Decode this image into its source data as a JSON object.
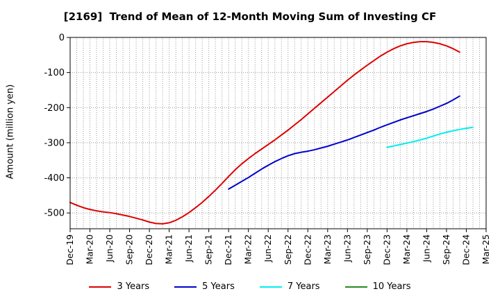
{
  "chart_data": {
    "type": "line",
    "title": "[2169]  Trend of Mean of 12-Month Moving Sum of Investing CF",
    "xlabel": "",
    "ylabel": "Amount (million yen)",
    "ylim": [
      -545,
      0
    ],
    "yticks": [
      0,
      -100,
      -200,
      -300,
      -400,
      -500
    ],
    "ytick_labels": [
      "0",
      "-100",
      "-200",
      "-300",
      "-400",
      "-500"
    ],
    "x_start": "Dec-19",
    "x_months": 63,
    "xtick_labels": [
      "Dec-19",
      "Mar-20",
      "Jun-20",
      "Sep-20",
      "Dec-20",
      "Mar-21",
      "Jun-21",
      "Sep-21",
      "Dec-21",
      "Mar-22",
      "Jun-22",
      "Sep-22",
      "Dec-22",
      "Mar-23",
      "Jun-23",
      "Sep-23",
      "Dec-23",
      "Mar-24",
      "Jun-24",
      "Sep-24",
      "Dec-24",
      "Mar-25"
    ],
    "grid": true,
    "legend_position": "bottom",
    "series": [
      {
        "name": "3 Years",
        "color": "#dd0000",
        "start_index": 0,
        "values": [
          -470,
          -478,
          -485,
          -490,
          -494,
          -497,
          -499,
          -502,
          -506,
          -510,
          -515,
          -520,
          -526,
          -530,
          -531,
          -528,
          -521,
          -511,
          -499,
          -485,
          -470,
          -453,
          -435,
          -416,
          -396,
          -377,
          -360,
          -345,
          -331,
          -318,
          -305,
          -292,
          -278,
          -264,
          -249,
          -234,
          -218,
          -202,
          -186,
          -170,
          -154,
          -138,
          -122,
          -107,
          -93,
          -79,
          -66,
          -53,
          -42,
          -32,
          -24,
          -18,
          -14,
          -12,
          -12,
          -14,
          -18,
          -24,
          -32,
          -42
        ]
      },
      {
        "name": "5 Years",
        "color": "#0000cc",
        "start_index": 24,
        "values": [
          -432,
          -421,
          -410,
          -399,
          -387,
          -375,
          -364,
          -354,
          -345,
          -337,
          -331,
          -327,
          -324,
          -320,
          -315,
          -310,
          -304,
          -298,
          -292,
          -285,
          -278,
          -271,
          -264,
          -256,
          -249,
          -242,
          -235,
          -229,
          -223,
          -217,
          -211,
          -204,
          -196,
          -188,
          -178,
          -167
        ]
      },
      {
        "name": "7 Years",
        "color": "#00eeee",
        "start_index": 48,
        "values": [
          -313,
          -309,
          -305,
          -301,
          -297,
          -292,
          -287,
          -281,
          -275,
          -270,
          -266,
          -262,
          -259,
          -256
        ]
      },
      {
        "name": "10 Years",
        "color": "#228b22",
        "start_index": 0,
        "values": []
      }
    ]
  }
}
